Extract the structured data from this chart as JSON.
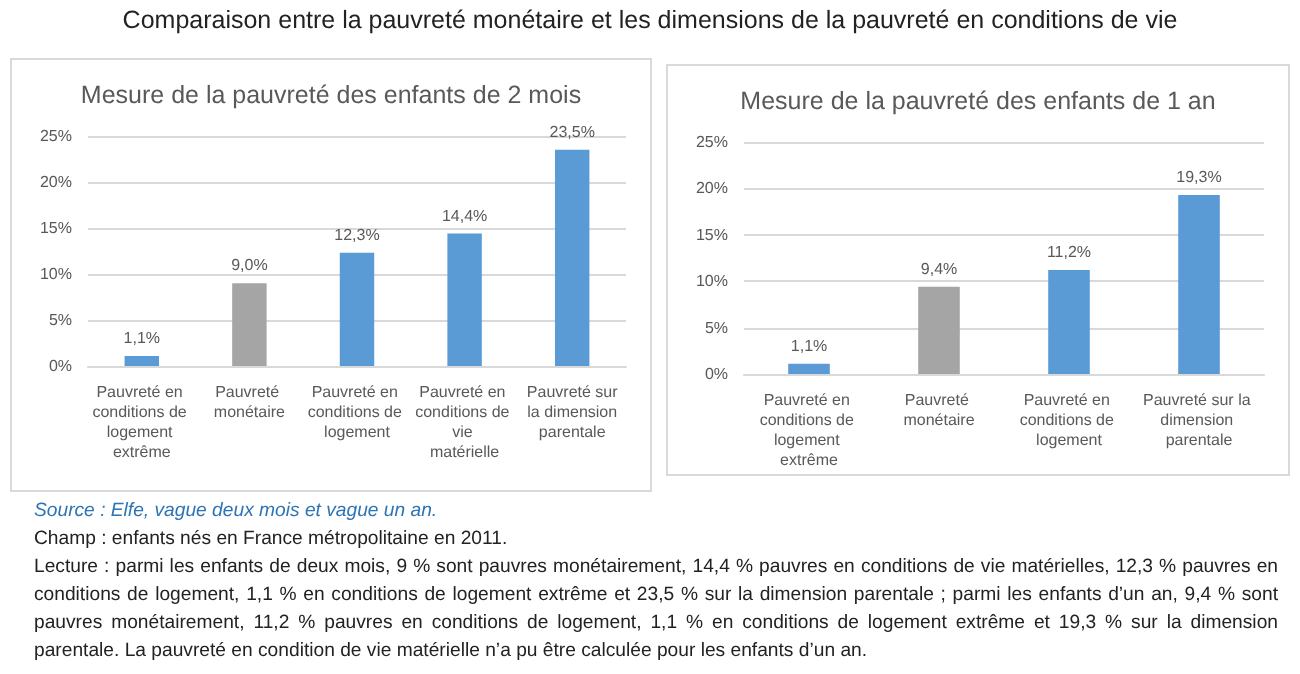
{
  "chart_data": [
    {
      "type": "other",
      "title": "Comparaison entre la pauvreté monétaire et les dimensions de la pauvreté en conditions de vie"
    },
    {
      "type": "bar",
      "title": "Mesure de la pauvreté des enfants de 2 mois",
      "categories": [
        "Pauvreté en conditions de logement extrême",
        "Pauvreté monétaire",
        "Pauvreté en conditions de logement",
        "Pauvreté en conditions de vie matérielle",
        "Pauvreté sur la dimension parentale"
      ],
      "values": [
        1.1,
        9.0,
        12.3,
        14.4,
        23.5
      ],
      "colors": [
        "#5b9bd5",
        "#a5a5a5",
        "#5b9bd5",
        "#5b9bd5",
        "#5b9bd5"
      ],
      "value_labels": [
        "1,1%",
        "9,0%",
        "12,3%",
        "14,4%",
        "23,5%"
      ],
      "ylim": [
        0,
        25
      ],
      "yticks": [
        {
          "value": 0,
          "label": "0%"
        },
        {
          "value": 5,
          "label": "5%"
        },
        {
          "value": 10,
          "label": "10%"
        },
        {
          "value": 15,
          "label": "15%"
        },
        {
          "value": 20,
          "label": "20%"
        },
        {
          "value": 25,
          "label": "25%"
        }
      ],
      "grid": "y"
    },
    {
      "type": "bar",
      "title": "Mesure de la pauvreté des enfants de 1 an",
      "categories": [
        "Pauvreté en conditions de logement extrême",
        "Pauvreté monétaire",
        "Pauvreté en conditions de logement",
        "Pauvreté sur la dimension parentale"
      ],
      "values": [
        1.1,
        9.4,
        11.2,
        19.3
      ],
      "colors": [
        "#5b9bd5",
        "#a5a5a5",
        "#5b9bd5",
        "#5b9bd5"
      ],
      "value_labels": [
        "1,1%",
        "9,4%",
        "11,2%",
        "19,3%"
      ],
      "ylim": [
        0,
        25
      ],
      "yticks": [
        {
          "value": 0,
          "label": "0%"
        },
        {
          "value": 5,
          "label": "5%"
        },
        {
          "value": 10,
          "label": "10%"
        },
        {
          "value": 15,
          "label": "15%"
        },
        {
          "value": 20,
          "label": "20%"
        },
        {
          "value": 25,
          "label": "25%"
        }
      ],
      "grid": "y"
    },
    {
      "type": "other",
      "annotations": [
        "Source : Elfe, vague deux mois et vague un an.",
        "Champ : enfants nés en France métropolitaine en 2011.",
        "Lecture : parmi les enfants de deux mois, 9 % sont pauvres monétairement, 14,4 % pauvres en conditions de vie matérielles, 12,3 % pauvres en conditions de logement, 1,1 % en conditions de logement extrême et 23,5 % sur la dimension parentale ; parmi les enfants d’un an, 9,4 % sont pauvres monétairement, 11,2 % pauvres en conditions de logement, 1,1 % en conditions de logement extrême et 19,3 % sur la dimension parentale. La pauvreté en condition de vie matérielle n’a pu être calculée pour les enfants d’un an."
      ]
    }
  ]
}
